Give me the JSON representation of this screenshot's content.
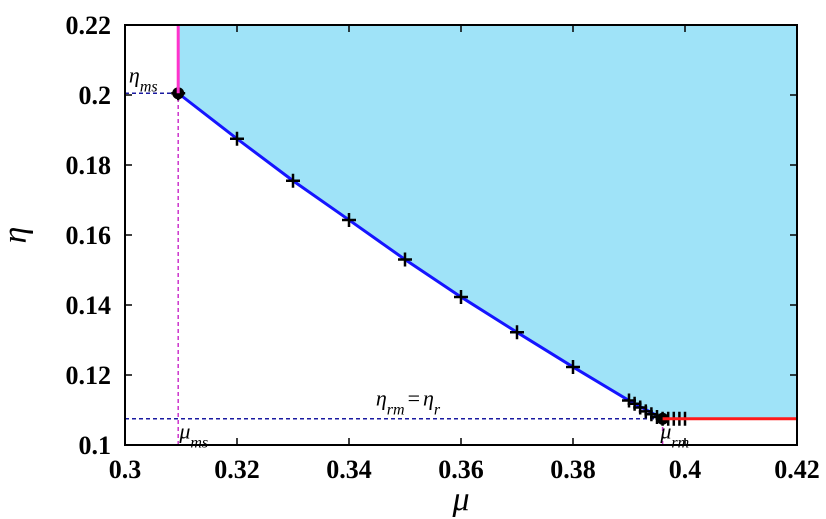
{
  "chart_data": {
    "type": "line",
    "xlabel": "μ",
    "ylabel": "η",
    "xlim": [
      0.3,
      0.42
    ],
    "ylim": [
      0.1,
      0.22
    ],
    "xticks": [
      "0.3",
      "0.32",
      "0.34",
      "0.36",
      "0.38",
      "0.4",
      "0.42"
    ],
    "yticks": [
      "0.1",
      "0.12",
      "0.14",
      "0.16",
      "0.18",
      "0.2",
      "0.22"
    ],
    "grid": false,
    "shaded_region_color": "#9fe3f8",
    "series": [
      {
        "style": "line",
        "color": "#1515ff",
        "points": [
          [
            0.3095,
            0.2005
          ],
          [
            0.32,
            0.1875
          ],
          [
            0.33,
            0.1755
          ],
          [
            0.34,
            0.1643
          ],
          [
            0.35,
            0.153
          ],
          [
            0.36,
            0.1423
          ],
          [
            0.37,
            0.1322
          ],
          [
            0.38,
            0.1223
          ],
          [
            0.39,
            0.1127
          ],
          [
            0.396,
            0.1075
          ]
        ]
      },
      {
        "style": "markers",
        "marker": "plus",
        "color": "#000000",
        "points": [
          [
            0.3095,
            0.2005
          ],
          [
            0.32,
            0.1875
          ],
          [
            0.33,
            0.1755
          ],
          [
            0.34,
            0.1643
          ],
          [
            0.35,
            0.153
          ],
          [
            0.36,
            0.1423
          ],
          [
            0.37,
            0.1322
          ],
          [
            0.38,
            0.1223
          ],
          [
            0.39,
            0.1127
          ],
          [
            0.391,
            0.1118
          ],
          [
            0.392,
            0.1107
          ],
          [
            0.393,
            0.1096
          ],
          [
            0.394,
            0.1088
          ],
          [
            0.395,
            0.108
          ],
          [
            0.396,
            0.1075
          ],
          [
            0.397,
            0.1075
          ],
          [
            0.398,
            0.1075
          ],
          [
            0.399,
            0.1075
          ],
          [
            0.4,
            0.1075
          ]
        ]
      },
      {
        "style": "markers",
        "marker": "dot",
        "color": "#000000",
        "points": [
          [
            0.3095,
            0.2005
          ],
          [
            0.396,
            0.1075
          ]
        ]
      },
      {
        "style": "line",
        "color": "#ff1a1a",
        "points": [
          [
            0.396,
            0.1075
          ],
          [
            0.42,
            0.1075
          ]
        ]
      },
      {
        "style": "line",
        "color": "#ff33cc",
        "points": [
          [
            0.3095,
            0.2005
          ],
          [
            0.3095,
            0.22
          ]
        ]
      }
    ],
    "reference_lines": [
      {
        "orientation": "horizontal",
        "value": 0.2005,
        "from": 0.3,
        "to": 0.3095,
        "color": "#1a1aa0"
      },
      {
        "orientation": "horizontal",
        "value": 0.1075,
        "from": 0.3,
        "to": 0.396,
        "color": "#1a1aa0"
      },
      {
        "orientation": "vertical",
        "value": 0.3095,
        "from": 0.1,
        "to": 0.2005,
        "color": "#cc33cc"
      },
      {
        "orientation": "vertical",
        "value": 0.396,
        "from": 0.1,
        "to": 0.1075,
        "color": "#cc33cc"
      }
    ],
    "annotations": {
      "eta_ms": {
        "base": "η",
        "sub": "ms",
        "x": 0.3007,
        "y": 0.2036
      },
      "eta_rm_eq": {
        "base1": "η",
        "sub1": "rm",
        "eq": "=",
        "base2": "η",
        "sub2": "r",
        "x": 0.3448,
        "y": 0.1113
      },
      "mu_ms": {
        "base": "μ",
        "sub": "ms",
        "x": 0.3097,
        "y": 0.1019
      },
      "mu_rm": {
        "base": "μ",
        "sub": "rm",
        "x": 0.3956,
        "y": 0.1019
      }
    }
  }
}
